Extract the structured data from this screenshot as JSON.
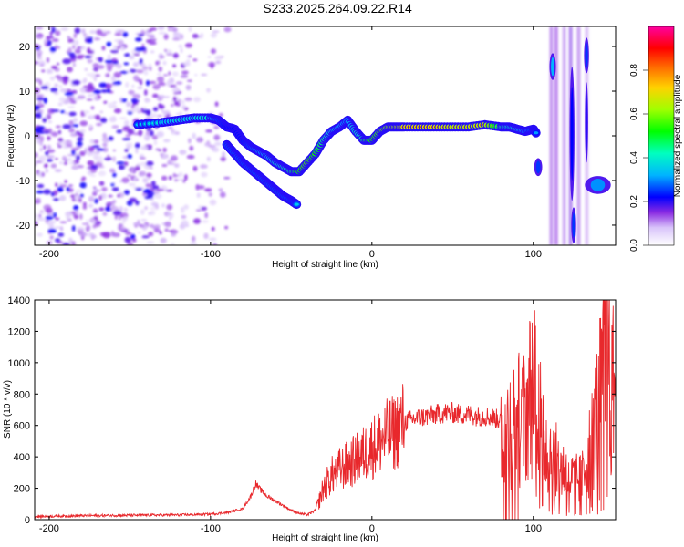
{
  "title": "S233.2025.264.09.22.R14",
  "chart_data": [
    {
      "type": "heatmap",
      "xlabel": "Height of straight line (km)",
      "ylabel": "Frequency (Hz)",
      "xlim": [
        -209,
        151
      ],
      "ylim": [
        -24.5,
        24.5
      ],
      "x_ticks": [
        -200,
        -100,
        0,
        100
      ],
      "y_ticks": [
        -20,
        -10,
        0,
        10,
        20
      ],
      "colorbar": {
        "label": "Normalized spectral amplitude",
        "range": [
          0,
          1
        ],
        "ticks": [
          "0.0",
          "0.2",
          "0.4",
          "0.6",
          "0.8"
        ],
        "colors": [
          "#ffffff",
          "#b48cf0",
          "#7a00ff",
          "#0000ff",
          "#00b4ff",
          "#00ffb4",
          "#00ff00",
          "#b4ff00",
          "#ffd200",
          "#ff6400",
          "#ff0000",
          "#ff0064",
          "#ff00aa"
        ]
      },
      "ridge": {
        "x": [
          -145,
          -130,
          -120,
          -110,
          -100,
          -95,
          -90,
          -85,
          -80,
          -75,
          -70,
          -65,
          -60,
          -55,
          -50,
          -45,
          -40,
          -35,
          -30,
          -25,
          -20,
          -15,
          -10,
          -5,
          0,
          5,
          10,
          15,
          20,
          30,
          40,
          50,
          60,
          70,
          80,
          85,
          90,
          95,
          100,
          102
        ],
        "y": [
          2.5,
          3,
          3.5,
          4,
          4,
          3.5,
          2,
          1.5,
          -1,
          -2.5,
          -3.5,
          -4.5,
          -6,
          -7,
          -8,
          -8,
          -6,
          -4,
          -1,
          1,
          2,
          3.5,
          1,
          -1,
          -1,
          1,
          2,
          2,
          2,
          2,
          2,
          2,
          2,
          2.5,
          2,
          2,
          1.5,
          1,
          1.5,
          0.5
        ],
        "amplitude": [
          0.35,
          0.4,
          0.45,
          0.45,
          0.45,
          0.35,
          0.3,
          0.3,
          0.3,
          0.35,
          0.4,
          0.45,
          0.5,
          0.55,
          0.6,
          0.7,
          0.75,
          0.7,
          0.6,
          0.5,
          0.45,
          0.4,
          0.5,
          0.6,
          0.7,
          0.75,
          0.8,
          0.85,
          0.9,
          0.9,
          0.9,
          0.85,
          0.85,
          0.85,
          0.6,
          0.55,
          0.5,
          0.4,
          0.35,
          0.3
        ]
      },
      "lower_branch": {
        "x": [
          -90,
          -85,
          -80,
          -75,
          -70,
          -65,
          -60,
          -55,
          -50,
          -46
        ],
        "y": [
          -2,
          -4,
          -6,
          -7.5,
          -9,
          -10.5,
          -12,
          -13.5,
          -14.5,
          -15.5
        ]
      }
    },
    {
      "type": "line",
      "xlabel": "Height of straight line (km)",
      "ylabel": "SNR (10 * v/v)",
      "xlim": [
        -209,
        151
      ],
      "ylim": [
        0,
        1400
      ],
      "x_ticks": [
        -200,
        -100,
        0,
        100
      ],
      "y_ticks": [
        0,
        200,
        400,
        600,
        800,
        1000,
        1200,
        1400
      ],
      "color": "#e8282c",
      "x": [
        -209,
        -180,
        -150,
        -120,
        -100,
        -90,
        -80,
        -75,
        -72,
        -70,
        -65,
        -60,
        -55,
        -50,
        -45,
        -40,
        -35,
        -33,
        -30,
        -25,
        -20,
        -15,
        -10,
        -5,
        0,
        5,
        10,
        15,
        17,
        20,
        25,
        30,
        35,
        40,
        45,
        50,
        55,
        60,
        65,
        70,
        75,
        78,
        80,
        83,
        85,
        88,
        90,
        95,
        100,
        102,
        105,
        110,
        115,
        120,
        125,
        130,
        135,
        140,
        145,
        146,
        148,
        150
      ],
      "y": [
        20,
        25,
        28,
        30,
        35,
        45,
        70,
        150,
        230,
        200,
        150,
        120,
        90,
        60,
        40,
        30,
        60,
        110,
        200,
        280,
        320,
        350,
        380,
        420,
        460,
        500,
        540,
        560,
        600,
        620,
        640,
        650,
        660,
        670,
        680,
        680,
        670,
        670,
        660,
        660,
        650,
        640,
        630,
        620,
        610,
        620,
        640,
        650,
        900,
        1000,
        550,
        450,
        350,
        300,
        250,
        250,
        450,
        700,
        1000,
        1400,
        700,
        900
      ]
    }
  ]
}
